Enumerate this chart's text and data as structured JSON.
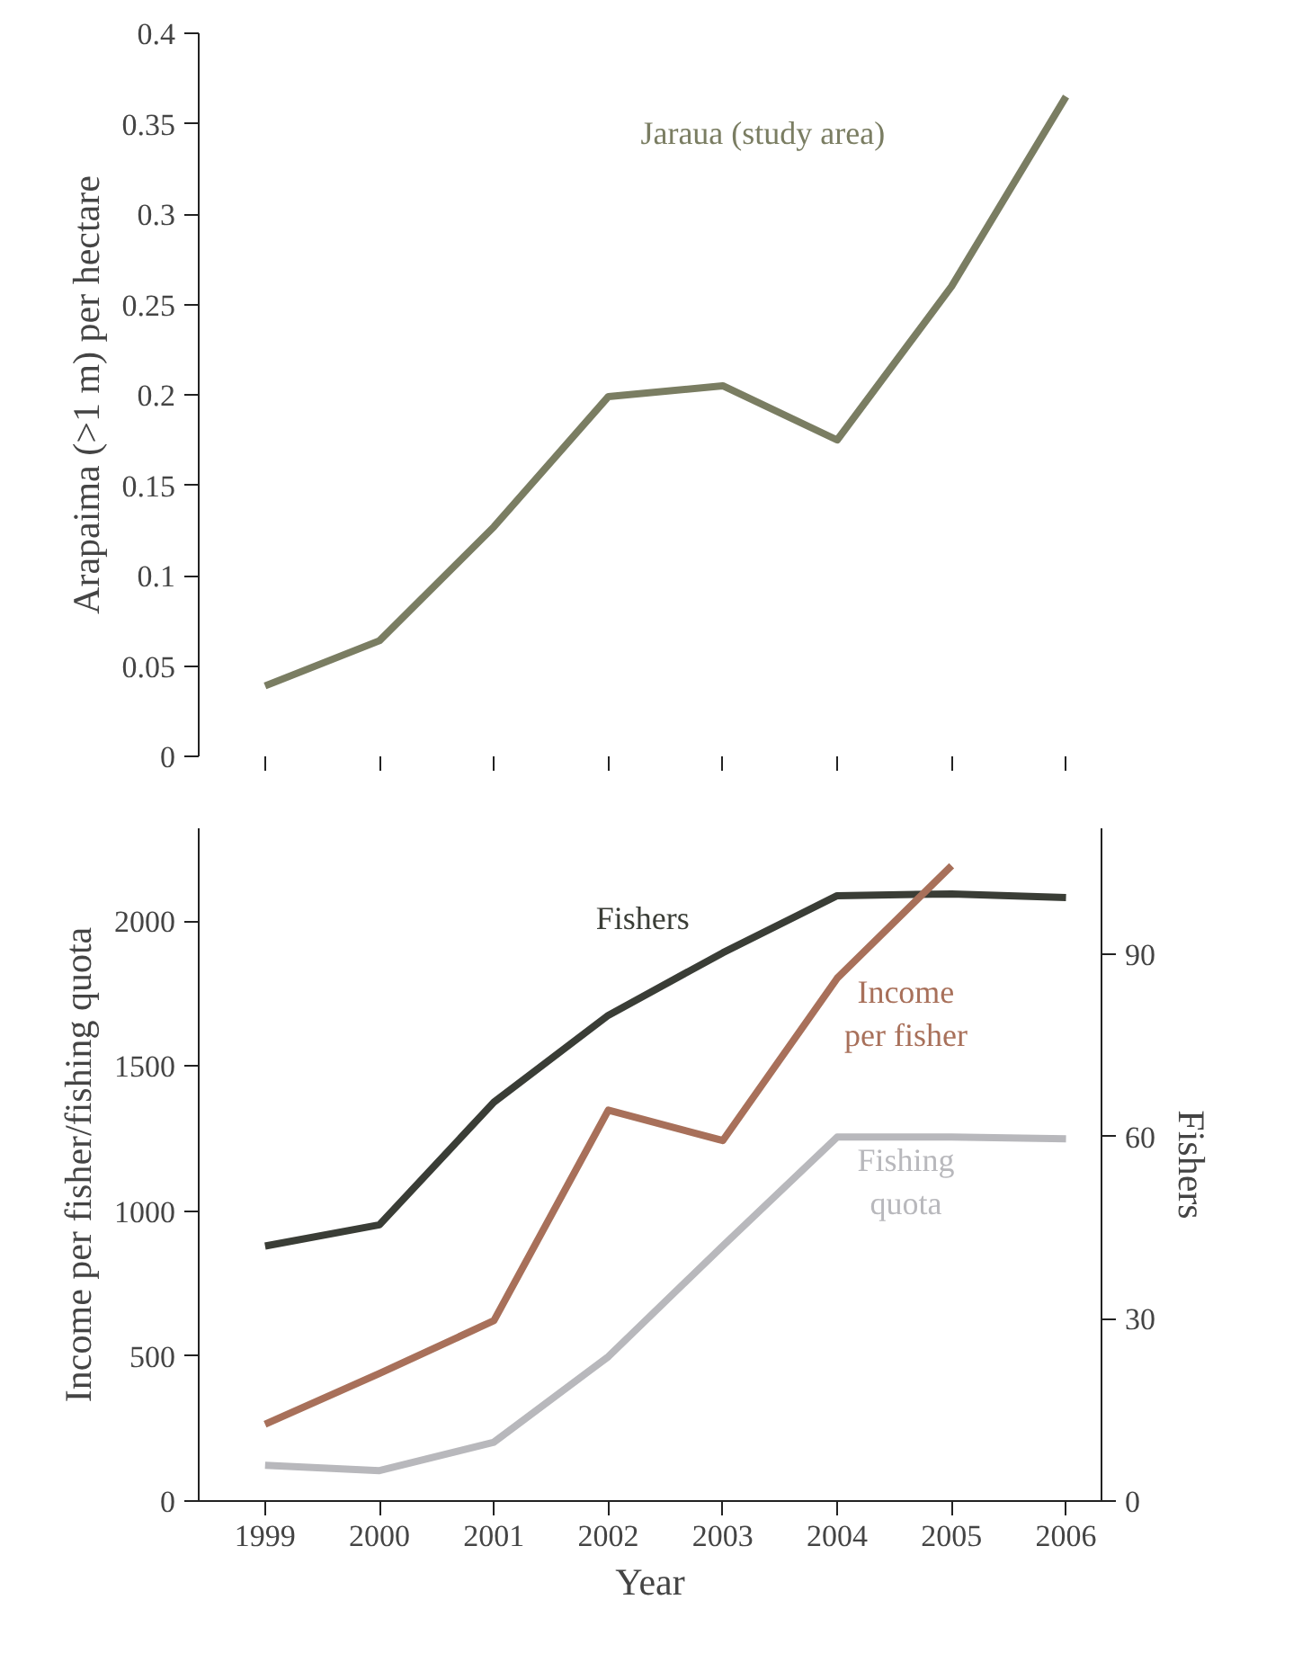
{
  "chart_data": [
    {
      "type": "line",
      "ylabel": "Arapaima (>1 m) per hectare",
      "categories": [
        null,
        null,
        null,
        null,
        null,
        null,
        null,
        null
      ],
      "series": [
        {
          "name": "Jaraua (study area)",
          "color": "#7a7d62",
          "values": [
            0.039,
            0.064,
            0.127,
            0.199,
            0.205,
            0.175,
            0.26,
            0.365
          ]
        }
      ],
      "ylim": [
        0,
        0.4
      ],
      "yticks": [
        0,
        0.05,
        0.1,
        0.15,
        0.2,
        0.25,
        0.3,
        0.35,
        0.4
      ],
      "tick_labels": "y",
      "grid": false
    },
    {
      "type": "line",
      "xlabel": "Year",
      "ylabel": "Income per fisher/fishing quota",
      "y2label": "Fishers",
      "x": [
        1999,
        2000,
        2001,
        2002,
        2003,
        2004,
        2005,
        2006
      ],
      "series": [
        {
          "name": "Fishers",
          "color": "#3a3d36",
          "axis": "y2",
          "values": [
            42,
            45.5,
            65.7,
            80,
            90.3,
            99.7,
            100,
            99.4
          ]
        },
        {
          "name": "Income per fisher",
          "color": "#a8705a",
          "values": [
            265,
            440,
            622,
            1348,
            1243,
            1803,
            2191,
            null
          ]
        },
        {
          "name": "Fishing quota",
          "color": "#b8b8bc",
          "values": [
            123,
            105,
            203,
            498,
            880,
            1255,
            1255,
            1249
          ]
        }
      ],
      "xlim": [
        1998.42,
        2006.31
      ],
      "xticks": [
        1999,
        2000,
        2001,
        2002,
        2003,
        2004,
        2005,
        2006
      ],
      "ylim": [
        0,
        2320
      ],
      "yticks": [
        0,
        500,
        1000,
        1500,
        2000
      ],
      "y2lim": [
        0,
        110.8
      ],
      "y2ticks": [
        0,
        30,
        60,
        90
      ],
      "grid": false
    }
  ]
}
